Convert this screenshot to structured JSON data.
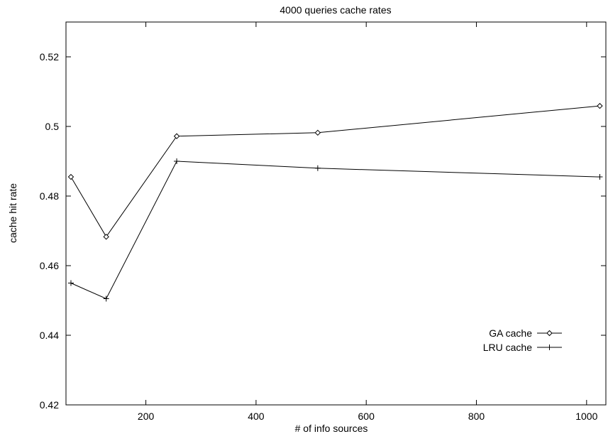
{
  "chart_data": {
    "type": "line",
    "title": "4000 queries cache rates",
    "xlabel": "# of info sources",
    "ylabel": "cache hit rate",
    "xlim": [
      55,
      1035
    ],
    "ylim": [
      0.42,
      0.53
    ],
    "xticks": [
      200,
      400,
      600,
      800,
      1000
    ],
    "yticks": [
      0.42,
      0.44,
      0.46,
      0.48,
      0.5,
      0.52
    ],
    "ytick_labels": [
      "0.42",
      "0.44",
      "0.46",
      "0.48",
      "0.5",
      "0.52"
    ],
    "grid": false,
    "legend_position": "bottom-right",
    "series": [
      {
        "name": "GA cache",
        "marker": "diamond",
        "x": [
          64,
          128,
          256,
          512,
          1024
        ],
        "y": [
          0.4855,
          0.4683,
          0.4972,
          0.4982,
          0.5059
        ]
      },
      {
        "name": "LRU cache",
        "marker": "plus",
        "x": [
          64,
          128,
          256,
          512,
          1024
        ],
        "y": [
          0.455,
          0.4505,
          0.49,
          0.488,
          0.4855
        ]
      }
    ]
  }
}
